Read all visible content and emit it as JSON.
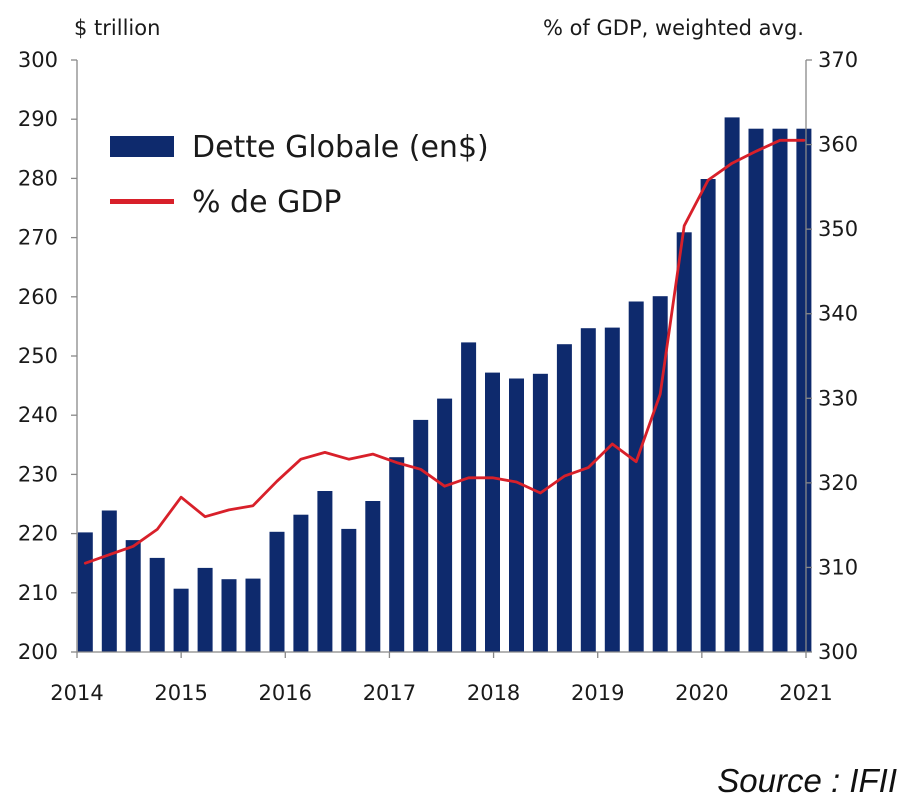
{
  "chart_data": {
    "type": "bar",
    "title": "",
    "left_unit_label": "$ trillion",
    "right_unit_label": "% of GDP, weighted avg.",
    "x_tick_labels": [
      "2014",
      "2015",
      "2016",
      "2017",
      "2018",
      "2019",
      "2020",
      "2021"
    ],
    "x_range": [
      2014.0,
      2021.0
    ],
    "y_left": {
      "range": [
        200,
        300
      ],
      "ticks": [
        200,
        210,
        220,
        230,
        240,
        250,
        260,
        270,
        280,
        290,
        300
      ]
    },
    "y_right": {
      "range": [
        300,
        370
      ],
      "ticks": [
        300,
        310,
        320,
        330,
        340,
        350,
        360,
        370
      ]
    },
    "grid": false,
    "legend_placement": "top-left",
    "series": [
      {
        "name": "Dette Globale (en$)",
        "kind": "bar",
        "axis": "left",
        "color": "#0e2a6d",
        "x": [
          2014.08,
          2014.31,
          2014.54,
          2014.77,
          2015.0,
          2015.23,
          2015.46,
          2015.69,
          2015.92,
          2016.15,
          2016.38,
          2016.61,
          2016.84,
          2017.07,
          2017.3,
          2017.53,
          2017.76,
          2017.99,
          2018.22,
          2018.45,
          2018.68,
          2018.91,
          2019.14,
          2019.37,
          2019.6,
          2019.83,
          2020.06,
          2020.29,
          2020.52,
          2020.75,
          2020.98
        ],
        "values": [
          220.2,
          223.9,
          218.9,
          215.9,
          210.7,
          214.2,
          212.3,
          212.4,
          220.3,
          223.2,
          227.2,
          220.8,
          225.5,
          232.9,
          239.2,
          242.8,
          252.3,
          247.2,
          246.2,
          247.0,
          252.0,
          254.7,
          254.8,
          259.2,
          260.1,
          270.9,
          279.9,
          290.3,
          288.4,
          288.4,
          288.4
        ]
      },
      {
        "name": "% de GDP",
        "kind": "line",
        "axis": "right",
        "color": "#d8202a",
        "x": [
          2014.08,
          2014.31,
          2014.54,
          2014.77,
          2015.0,
          2015.23,
          2015.46,
          2015.69,
          2015.92,
          2016.15,
          2016.38,
          2016.61,
          2016.84,
          2017.07,
          2017.3,
          2017.53,
          2017.76,
          2017.99,
          2018.22,
          2018.45,
          2018.68,
          2018.91,
          2019.14,
          2019.37,
          2019.6,
          2019.83,
          2020.06,
          2020.29,
          2020.52,
          2020.75,
          2020.98
        ],
        "values": [
          310.5,
          311.5,
          312.5,
          314.5,
          318.3,
          316.0,
          316.8,
          317.3,
          320.2,
          322.8,
          323.6,
          322.8,
          323.4,
          322.4,
          321.6,
          319.6,
          320.6,
          320.6,
          320.1,
          318.8,
          320.8,
          321.8,
          324.6,
          322.5,
          330.5,
          350.4,
          355.8,
          357.8,
          359.2,
          360.5,
          360.5
        ]
      }
    ]
  },
  "source": "Source : IFII"
}
